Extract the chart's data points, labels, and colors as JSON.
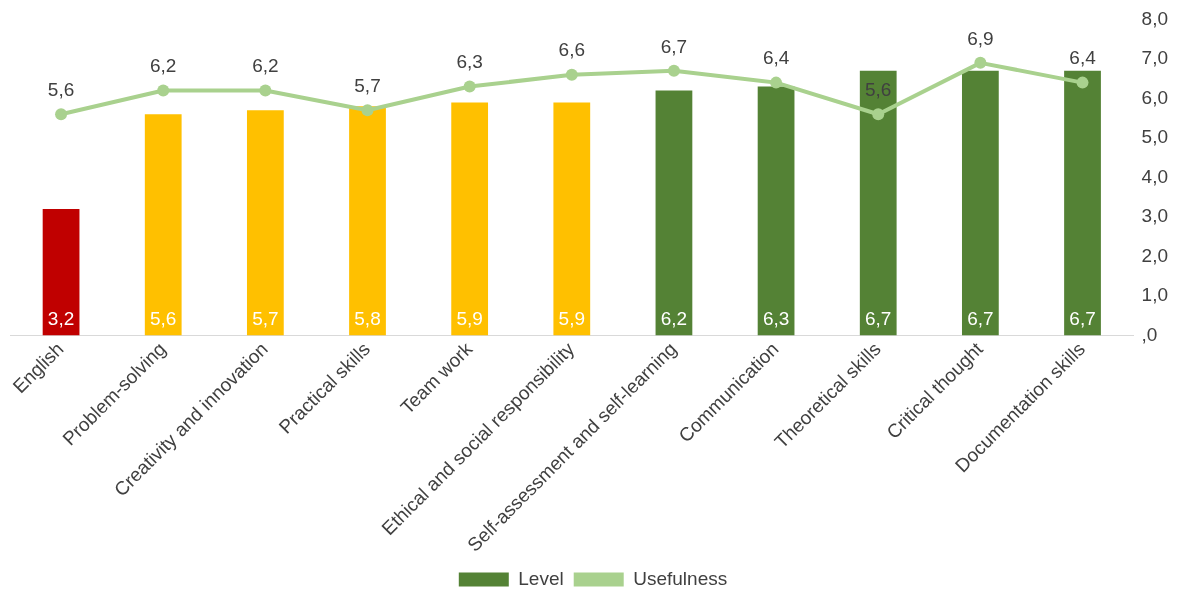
{
  "chart_data": {
    "type": "bar",
    "categories": [
      "English",
      "Problem-solving",
      "Creativity and innovation",
      "Practical skills",
      "Team work",
      "Ethical and social responsibility",
      "Self-assessment and self-learning",
      "Communication",
      "Theoretical skills",
      "Critical thought",
      "Documentation skills"
    ],
    "series": [
      {
        "name": "Level",
        "color": "#548235",
        "colors": [
          "#c00000",
          "#ffc000",
          "#ffc000",
          "#ffc000",
          "#ffc000",
          "#ffc000",
          "#548235",
          "#548235",
          "#548235",
          "#548235",
          "#548235"
        ],
        "values": [
          3.2,
          5.6,
          5.7,
          5.8,
          5.9,
          5.9,
          6.2,
          6.3,
          6.7,
          6.7,
          6.7
        ],
        "value_labels": [
          "3,2",
          "5,6",
          "5,7",
          "5,8",
          "5,9",
          "5,9",
          "6,2",
          "6,3",
          "6,7",
          "6,7",
          "6,7"
        ]
      },
      {
        "name": "Usefulness",
        "type": "line",
        "color": "#a9d18e",
        "marker": "circle",
        "values": [
          5.6,
          6.2,
          6.2,
          5.7,
          6.3,
          6.6,
          6.7,
          6.4,
          5.6,
          6.9,
          6.4
        ],
        "value_labels": [
          "5,6",
          "6,2",
          "6,2",
          "5,7",
          "6,3",
          "6,6",
          "6,7",
          "6,4",
          "5,6",
          "6,9",
          "6,4"
        ]
      }
    ],
    "ylim": [
      0,
      8
    ],
    "yticks": [
      {
        "value": 0,
        "label": ",0"
      },
      {
        "value": 1,
        "label": "1,0"
      },
      {
        "value": 2,
        "label": "2,0"
      },
      {
        "value": 3,
        "label": "3,0"
      },
      {
        "value": 4,
        "label": "4,0"
      },
      {
        "value": 5,
        "label": "5,0"
      },
      {
        "value": 6,
        "label": "6,0"
      },
      {
        "value": 7,
        "label": "7,0"
      },
      {
        "value": 8,
        "label": "8,0"
      }
    ],
    "grid": false,
    "legend": "bottom"
  }
}
